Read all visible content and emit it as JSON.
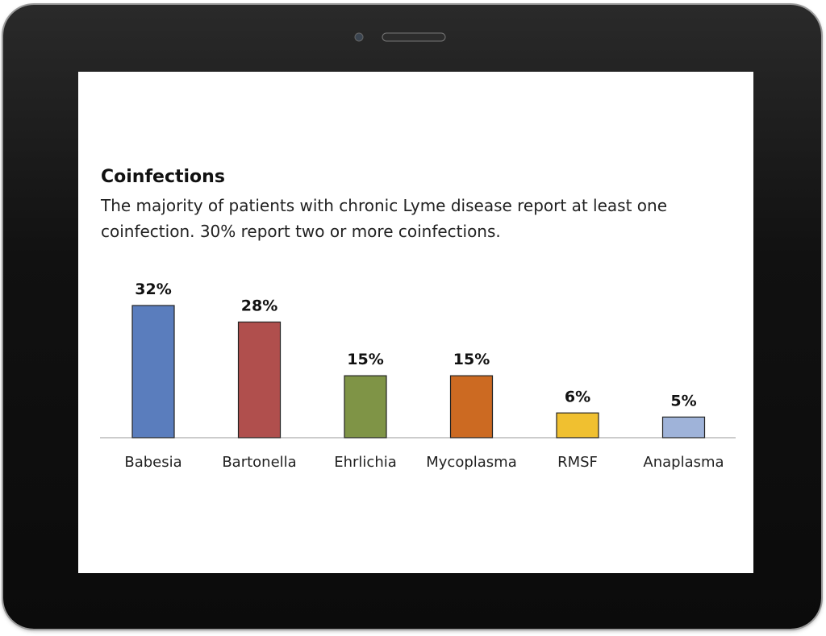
{
  "chart_data": {
    "type": "bar",
    "title": "Coinfections",
    "subtitle": "The majority of patients with chronic Lyme disease report at least one coinfection. 30% report two or more coinfections.",
    "categories": [
      "Babesia",
      "Bartonella",
      "Ehrlichia",
      "Mycoplasma",
      "RMSF",
      "Anaplasma"
    ],
    "values": [
      32,
      28,
      15,
      15,
      6,
      5
    ],
    "value_labels": [
      "32%",
      "28%",
      "15%",
      "15%",
      "6%",
      "5%"
    ],
    "colors": [
      "#5a7dbd",
      "#b04f4d",
      "#7f9446",
      "#cc6a22",
      "#f0c030",
      "#9fb3d9"
    ]
  }
}
